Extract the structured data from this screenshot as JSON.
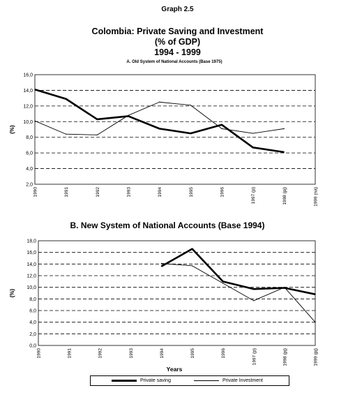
{
  "header": {
    "graph_label": "Graph 2.5",
    "title_line1": "Colombia:   Private Saving and Investment",
    "title_line2": "(% of GDP)",
    "title_line3": "1994 - 1999"
  },
  "legend": {
    "saving_label": "Private saving",
    "investment_label": "Private Investment"
  },
  "colors": {
    "line": "#000000",
    "grid": "#000000"
  },
  "chart_data": [
    {
      "type": "line",
      "title": "A. Old System of National Accounts (Base 1975)",
      "ylabel": "(%)",
      "xlabel": "",
      "categories": [
        "1990",
        "1991",
        "1992",
        "1993",
        "1994",
        "1995",
        "1996",
        "1997 (p)",
        "1998 (pj)",
        "1999 (na)"
      ],
      "ylim": [
        2,
        16
      ],
      "yticks": [
        "2,0",
        "4,0",
        "6,0",
        "8,0",
        "10,0",
        "12,0",
        "14,0",
        "16,0"
      ],
      "grid": "dashed horizontal",
      "series": [
        {
          "name": "Private saving",
          "values": [
            14.1,
            12.9,
            10.3,
            10.7,
            9.1,
            8.5,
            9.6,
            6.7,
            6.1,
            null
          ]
        },
        {
          "name": "Private Investment",
          "values": [
            10.1,
            8.4,
            8.3,
            10.8,
            12.5,
            12.1,
            9.1,
            8.5,
            9.1,
            null
          ]
        }
      ]
    },
    {
      "type": "line",
      "title": "B. New System of National Accounts (Base 1994)",
      "ylabel": "(%)",
      "xlabel": "Years",
      "categories": [
        "1990",
        "1991",
        "1992",
        "1993",
        "1994",
        "1995",
        "1996",
        "1997 (p)",
        "1998 (pj)",
        "1999 (pj)"
      ],
      "ylim": [
        0,
        18
      ],
      "yticks": [
        "0,0",
        "2,0",
        "4,0",
        "6,0",
        "8,0",
        "10,0",
        "12,0",
        "14,0",
        "16,0",
        "18,0"
      ],
      "grid": "dashed horizontal",
      "legend": "bottom",
      "series": [
        {
          "name": "Private saving",
          "values": [
            null,
            null,
            null,
            null,
            13.6,
            16.6,
            11.0,
            9.7,
            9.9,
            8.8
          ]
        },
        {
          "name": "Private Investment",
          "values": [
            null,
            null,
            null,
            null,
            14.1,
            13.7,
            10.7,
            7.7,
            10.0,
            4.0
          ]
        }
      ]
    }
  ]
}
